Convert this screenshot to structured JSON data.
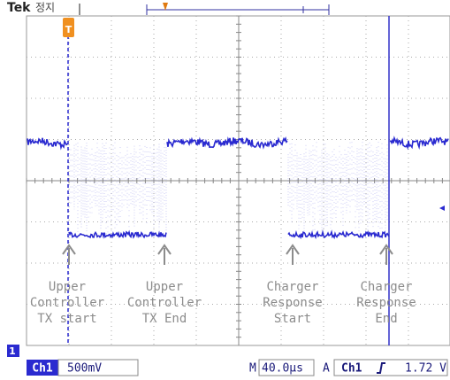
{
  "header": {
    "brand": "Tek",
    "status": "정지"
  },
  "markers": {
    "trigger": "T",
    "channel": "1"
  },
  "annotations": [
    {
      "lines": [
        "Upper",
        "Controller",
        "TX start"
      ]
    },
    {
      "lines": [
        "Upper",
        "Controller",
        "TX End"
      ]
    },
    {
      "lines": [
        "Charger",
        "Response",
        "Start"
      ]
    },
    {
      "lines": [
        "Charger",
        "Response",
        "End"
      ]
    }
  ],
  "status_bar": {
    "channel": "Ch1",
    "scale": "500mV",
    "time_label": "M",
    "time_scale": "40.0µs",
    "trigger_label": "A",
    "trigger_source": "Ch1",
    "trigger_level": "1.72 V"
  }
}
